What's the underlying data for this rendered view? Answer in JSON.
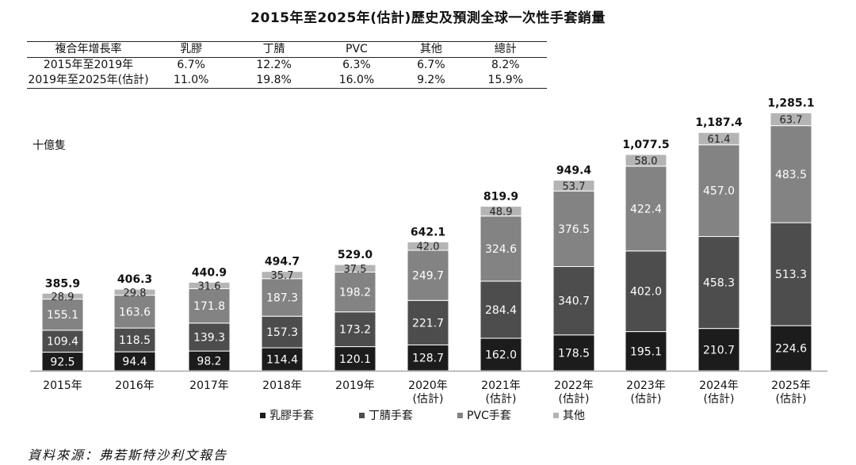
{
  "title": "2015年至2025年(估計)歷史及預測全球一次性手套銷量",
  "cagr_table": {
    "headers": [
      "複合年增長率",
      "乳膠",
      "丁腈",
      "PVC",
      "其他",
      "總計"
    ],
    "rows": [
      [
        "2015年至2019年",
        "6.7%",
        "12.2%",
        "6.3%",
        "6.7%",
        "8.2%"
      ],
      [
        "2019年至2025年(估計)",
        "11.0%",
        "19.8%",
        "16.0%",
        "9.2%",
        "15.9%"
      ]
    ]
  },
  "unit_label": "十億隻",
  "source": "資料來源：弗若斯特沙利文報告",
  "colors": {
    "latex": "#1c1c1c",
    "nitrile": "#4d4d4d",
    "pvc": "#838383",
    "other": "#b4b4b4",
    "axis": "#aaaaaa"
  },
  "chart_data": {
    "type": "bar",
    "stacked": true,
    "categories": [
      [
        "2015年"
      ],
      [
        "2016年"
      ],
      [
        "2017年"
      ],
      [
        "2018年"
      ],
      [
        "2019年"
      ],
      [
        "2020年",
        "(估計)"
      ],
      [
        "2021年",
        "(估計)"
      ],
      [
        "2022年",
        "(估計)"
      ],
      [
        "2023年",
        "(估計)"
      ],
      [
        "2024年",
        "(估計)"
      ],
      [
        "2025年",
        "(估計)"
      ]
    ],
    "series": [
      {
        "name": "乳膠手套",
        "key": "latex",
        "values": [
          92.5,
          94.4,
          98.2,
          114.4,
          120.1,
          128.7,
          162.0,
          178.5,
          195.1,
          210.7,
          224.6
        ]
      },
      {
        "name": "丁腈手套",
        "key": "nitrile",
        "values": [
          109.4,
          118.5,
          139.3,
          157.3,
          173.2,
          221.7,
          284.4,
          340.7,
          402.0,
          458.3,
          513.3
        ]
      },
      {
        "name": "PVC手套",
        "key": "pvc",
        "values": [
          155.1,
          163.6,
          171.8,
          187.3,
          198.2,
          249.7,
          324.6,
          376.5,
          422.4,
          457.0,
          483.5
        ]
      },
      {
        "name": "其他",
        "key": "other",
        "values": [
          28.9,
          29.8,
          31.6,
          35.7,
          37.5,
          42.0,
          48.9,
          53.7,
          58.0,
          61.4,
          63.7
        ]
      }
    ],
    "totals": [
      "385.9",
      "406.3",
      "440.9",
      "494.7",
      "529.0",
      "642.1",
      "819.9",
      "949.4",
      "1,077.5",
      "1,187.4",
      "1,285.1"
    ],
    "ylabel": "十億隻",
    "ylim": [
      0,
      1300
    ],
    "grid": false,
    "legend_position": "bottom"
  }
}
